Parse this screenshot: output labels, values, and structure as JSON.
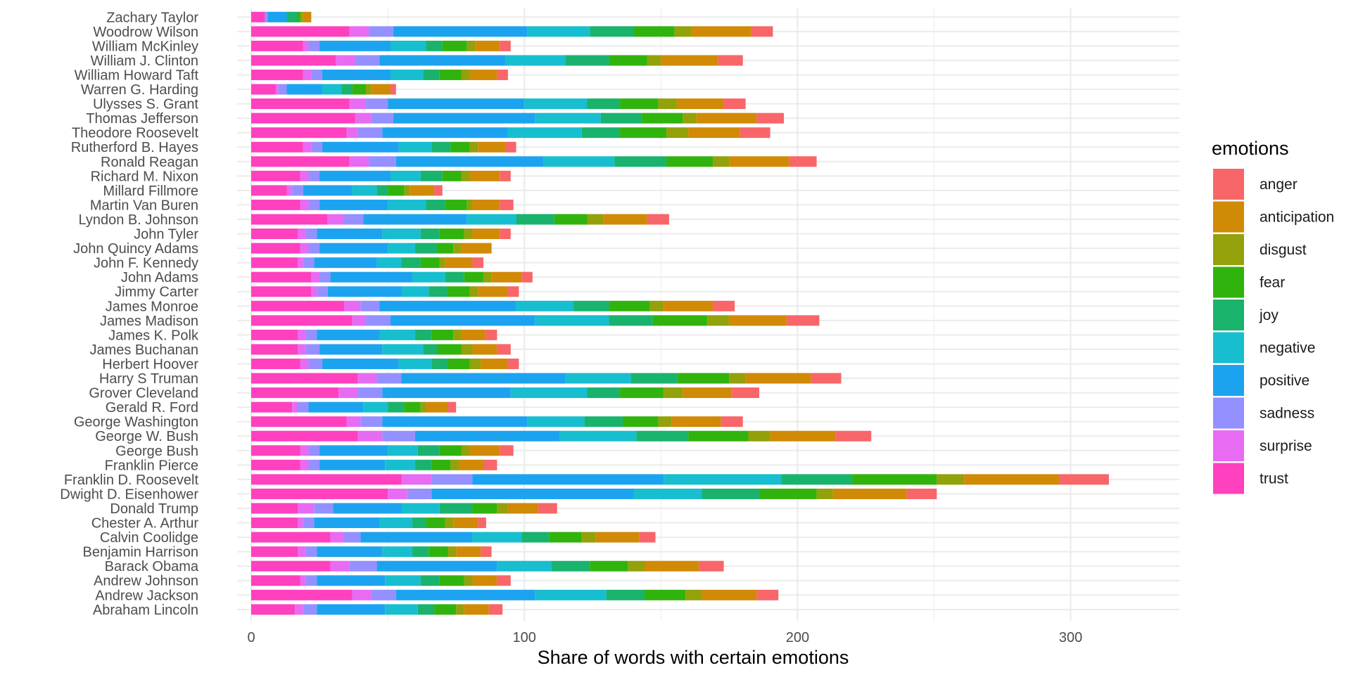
{
  "chart_data": {
    "type": "bar",
    "orientation": "horizontal",
    "stacked": true,
    "xlabel": "Share of words with certain emotions",
    "ylabel": "",
    "xlim": [
      0,
      340
    ],
    "xticks": [
      0,
      100,
      200,
      300
    ],
    "grid": true,
    "legend": {
      "title": "emotions",
      "position": "right"
    },
    "categories": [
      "Zachary Taylor",
      "Woodrow Wilson",
      "William McKinley",
      "William J. Clinton",
      "William Howard Taft",
      "Warren G. Harding",
      "Ulysses S. Grant",
      "Thomas Jefferson",
      "Theodore Roosevelt",
      "Rutherford B. Hayes",
      "Ronald Reagan",
      "Richard M. Nixon",
      "Millard Fillmore",
      "Martin Van Buren",
      "Lyndon B. Johnson",
      "John Tyler",
      "John Quincy Adams",
      "John F. Kennedy",
      "John Adams",
      "Jimmy Carter",
      "James Monroe",
      "James Madison",
      "James K. Polk",
      "James Buchanan",
      "Herbert Hoover",
      "Harry S Truman",
      "Grover Cleveland",
      "Gerald R. Ford",
      "George Washington",
      "George W. Bush",
      "George Bush",
      "Franklin Pierce",
      "Franklin D. Roosevelt",
      "Dwight D. Eisenhower",
      "Donald Trump",
      "Chester A. Arthur",
      "Calvin Coolidge",
      "Benjamin Harrison",
      "Barack Obama",
      "Andrew Johnson",
      "Andrew Jackson",
      "Abraham Lincoln"
    ],
    "stack_order": [
      "trust",
      "surprise",
      "sadness",
      "positive",
      "negative",
      "joy",
      "fear",
      "disgust",
      "anticipation",
      "anger"
    ],
    "series": [
      {
        "name": "trust",
        "color": "#FF40BF",
        "values": [
          5,
          36,
          19,
          31,
          19,
          9,
          36,
          38,
          35,
          19,
          36,
          18,
          13,
          18,
          28,
          17,
          18,
          17,
          22,
          22,
          34,
          37,
          17,
          17,
          18,
          39,
          32,
          15,
          35,
          39,
          18,
          18,
          55,
          50,
          17,
          17,
          29,
          17,
          29,
          18,
          37,
          16
        ]
      },
      {
        "name": "surprise",
        "color": "#E76BF3",
        "values": [
          0,
          7,
          2,
          7,
          3,
          1,
          6,
          6,
          4,
          3,
          7,
          3,
          2,
          3,
          6,
          3,
          3,
          2,
          3,
          2,
          6,
          5,
          3,
          3,
          3,
          7,
          7,
          2,
          5,
          9,
          3,
          3,
          11,
          7,
          6,
          2,
          5,
          3,
          7,
          2,
          7,
          3
        ]
      },
      {
        "name": "sadness",
        "color": "#9590FF",
        "values": [
          1,
          9,
          4,
          9,
          4,
          3,
          8,
          8,
          9,
          4,
          10,
          4,
          4,
          4,
          7,
          4,
          4,
          4,
          4,
          4,
          7,
          9,
          4,
          5,
          5,
          9,
          9,
          4,
          8,
          12,
          4,
          4,
          15,
          9,
          7,
          4,
          6,
          4,
          10,
          4,
          9,
          5
        ]
      },
      {
        "name": "positive",
        "color": "#1CA3F0",
        "values": [
          7,
          49,
          26,
          46,
          25,
          13,
          50,
          52,
          46,
          28,
          54,
          26,
          18,
          25,
          38,
          24,
          25,
          23,
          30,
          27,
          50,
          53,
          23,
          23,
          28,
          60,
          47,
          20,
          53,
          53,
          25,
          24,
          70,
          74,
          25,
          24,
          41,
          24,
          44,
          25,
          51,
          25
        ]
      },
      {
        "name": "negative",
        "color": "#17BECF",
        "values": [
          0,
          23,
          13,
          22,
          12,
          7,
          23,
          24,
          27,
          12,
          26,
          11,
          9,
          14,
          18,
          14,
          10,
          9,
          12,
          10,
          21,
          27,
          13,
          15,
          12,
          24,
          28,
          9,
          21,
          28,
          11,
          11,
          43,
          25,
          14,
          12,
          18,
          11,
          20,
          13,
          26,
          12
        ]
      },
      {
        "name": "joy",
        "color": "#19B36D",
        "values": [
          4,
          16,
          6,
          16,
          6,
          4,
          12,
          15,
          14,
          7,
          19,
          8,
          4,
          7,
          14,
          7,
          8,
          7,
          7,
          7,
          13,
          16,
          6,
          5,
          6,
          17,
          12,
          6,
          14,
          19,
          8,
          6,
          26,
          21,
          12,
          5,
          10,
          6,
          14,
          7,
          14,
          6
        ]
      },
      {
        "name": "fear",
        "color": "#31B30D",
        "values": [
          1,
          15,
          9,
          14,
          8,
          5,
          14,
          15,
          17,
          7,
          17,
          7,
          6,
          8,
          12,
          9,
          6,
          7,
          7,
          8,
          15,
          20,
          8,
          9,
          8,
          19,
          16,
          6,
          13,
          22,
          8,
          7,
          31,
          21,
          9,
          7,
          12,
          7,
          14,
          9,
          15,
          8
        ]
      },
      {
        "name": "disgust",
        "color": "#93A10A",
        "values": [
          1,
          6,
          3,
          5,
          3,
          2,
          7,
          5,
          8,
          3,
          6,
          3,
          2,
          2,
          6,
          3,
          3,
          2,
          3,
          3,
          5,
          8,
          3,
          4,
          4,
          6,
          7,
          2,
          5,
          8,
          3,
          3,
          10,
          6,
          4,
          3,
          5,
          3,
          6,
          3,
          6,
          3
        ]
      },
      {
        "name": "anticipation",
        "color": "#D18A05",
        "values": [
          3,
          22,
          9,
          21,
          10,
          7,
          17,
          22,
          19,
          10,
          22,
          11,
          9,
          10,
          16,
          10,
          11,
          10,
          11,
          11,
          18,
          21,
          9,
          9,
          10,
          24,
          18,
          8,
          18,
          24,
          11,
          9,
          35,
          27,
          11,
          9,
          16,
          9,
          20,
          9,
          20,
          9
        ]
      },
      {
        "name": "anger",
        "color": "#F8666A",
        "values": [
          0,
          8,
          4,
          9,
          4,
          2,
          8,
          10,
          11,
          4,
          10,
          4,
          3,
          5,
          8,
          4,
          0,
          4,
          4,
          4,
          8,
          12,
          4,
          5,
          4,
          11,
          10,
          3,
          8,
          13,
          5,
          5,
          18,
          11,
          7,
          3,
          6,
          4,
          9,
          5,
          8,
          5
        ]
      }
    ]
  }
}
